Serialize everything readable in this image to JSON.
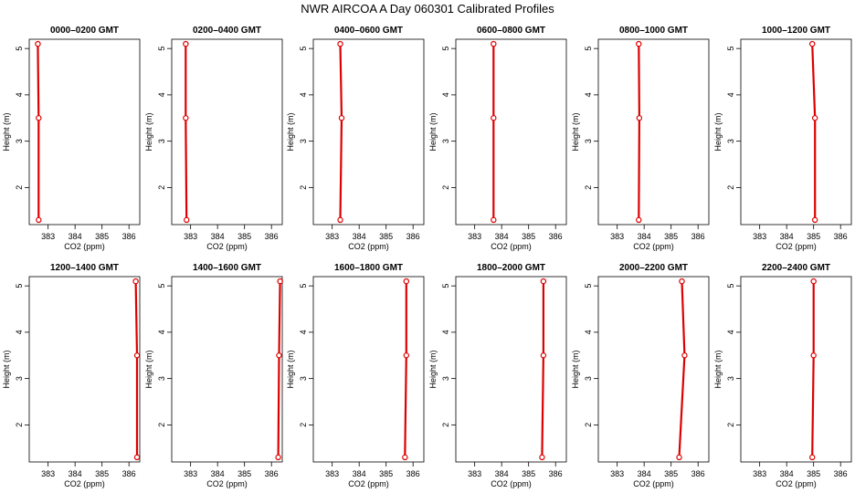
{
  "figure": {
    "title": "NWR AIRCOA A  Day 060301  Calibrated Profiles",
    "colors": {
      "line": "#dd0000",
      "axis": "#000000",
      "background": "#ffffff"
    }
  },
  "chart_data": [
    {
      "type": "line",
      "title": "0000–0200 GMT",
      "xlabel": "CO2 (ppm)",
      "ylabel": "Height (m)",
      "xlim": [
        382.3,
        386.4
      ],
      "ylim": [
        1.2,
        5.2
      ],
      "xticks": [
        383,
        384,
        385,
        386
      ],
      "yticks": [
        2,
        3,
        4,
        5
      ],
      "series": [
        {
          "x": [
            382.65,
            382.65,
            382.62
          ],
          "y": [
            1.3,
            3.5,
            5.1
          ]
        }
      ]
    },
    {
      "type": "line",
      "title": "0200–0400 GMT",
      "xlabel": "CO2 (ppm)",
      "ylabel": "Height (m)",
      "xlim": [
        382.3,
        386.4
      ],
      "ylim": [
        1.2,
        5.2
      ],
      "xticks": [
        383,
        384,
        385,
        386
      ],
      "yticks": [
        2,
        3,
        4,
        5
      ],
      "series": [
        {
          "x": [
            382.85,
            382.82,
            382.82
          ],
          "y": [
            1.3,
            3.5,
            5.1
          ]
        }
      ]
    },
    {
      "type": "line",
      "title": "0400–0600 GMT",
      "xlabel": "CO2 (ppm)",
      "ylabel": "Height (m)",
      "xlim": [
        382.3,
        386.4
      ],
      "ylim": [
        1.2,
        5.2
      ],
      "xticks": [
        383,
        384,
        385,
        386
      ],
      "yticks": [
        2,
        3,
        4,
        5
      ],
      "series": [
        {
          "x": [
            383.3,
            383.35,
            383.3
          ],
          "y": [
            1.3,
            3.5,
            5.1
          ]
        }
      ]
    },
    {
      "type": "line",
      "title": "0600–0800 GMT",
      "xlabel": "CO2 (ppm)",
      "ylabel": "Height (m)",
      "xlim": [
        382.3,
        386.4
      ],
      "ylim": [
        1.2,
        5.2
      ],
      "xticks": [
        383,
        384,
        385,
        386
      ],
      "yticks": [
        2,
        3,
        4,
        5
      ],
      "series": [
        {
          "x": [
            383.7,
            383.7,
            383.7
          ],
          "y": [
            1.3,
            3.5,
            5.1
          ]
        }
      ]
    },
    {
      "type": "line",
      "title": "0800–1000 GMT",
      "xlabel": "CO2 (ppm)",
      "ylabel": "Height (m)",
      "xlim": [
        382.3,
        386.4
      ],
      "ylim": [
        1.2,
        5.2
      ],
      "xticks": [
        383,
        384,
        385,
        386
      ],
      "yticks": [
        2,
        3,
        4,
        5
      ],
      "series": [
        {
          "x": [
            383.8,
            383.82,
            383.8
          ],
          "y": [
            1.3,
            3.5,
            5.1
          ]
        }
      ]
    },
    {
      "type": "line",
      "title": "1000–1200 GMT",
      "xlabel": "CO2 (ppm)",
      "ylabel": "Height (m)",
      "xlim": [
        382.3,
        386.4
      ],
      "ylim": [
        1.2,
        5.2
      ],
      "xticks": [
        383,
        384,
        385,
        386
      ],
      "yticks": [
        2,
        3,
        4,
        5
      ],
      "series": [
        {
          "x": [
            385.05,
            385.05,
            384.95
          ],
          "y": [
            1.3,
            3.5,
            5.1
          ]
        }
      ]
    },
    {
      "type": "line",
      "title": "1200–1400 GMT",
      "xlabel": "CO2 (ppm)",
      "ylabel": "Height (m)",
      "xlim": [
        382.3,
        386.4
      ],
      "ylim": [
        1.2,
        5.2
      ],
      "xticks": [
        383,
        384,
        385,
        386
      ],
      "yticks": [
        2,
        3,
        4,
        5
      ],
      "series": [
        {
          "x": [
            386.3,
            386.3,
            386.25
          ],
          "y": [
            1.3,
            3.5,
            5.1
          ]
        }
      ]
    },
    {
      "type": "line",
      "title": "1400–1600 GMT",
      "xlabel": "CO2 (ppm)",
      "ylabel": "Height (m)",
      "xlim": [
        382.3,
        386.4
      ],
      "ylim": [
        1.2,
        5.2
      ],
      "xticks": [
        383,
        384,
        385,
        386
      ],
      "yticks": [
        2,
        3,
        4,
        5
      ],
      "series": [
        {
          "x": [
            386.25,
            386.28,
            386.32
          ],
          "y": [
            1.3,
            3.5,
            5.1
          ]
        }
      ]
    },
    {
      "type": "line",
      "title": "1600–1800 GMT",
      "xlabel": "CO2 (ppm)",
      "ylabel": "Height (m)",
      "xlim": [
        382.3,
        386.4
      ],
      "ylim": [
        1.2,
        5.2
      ],
      "xticks": [
        383,
        384,
        385,
        386
      ],
      "yticks": [
        2,
        3,
        4,
        5
      ],
      "series": [
        {
          "x": [
            385.7,
            385.75,
            385.75
          ],
          "y": [
            1.3,
            3.5,
            5.1
          ]
        }
      ]
    },
    {
      "type": "line",
      "title": "1800–2000 GMT",
      "xlabel": "CO2 (ppm)",
      "ylabel": "Height (m)",
      "xlim": [
        382.3,
        386.4
      ],
      "ylim": [
        1.2,
        5.2
      ],
      "xticks": [
        383,
        384,
        385,
        386
      ],
      "yticks": [
        2,
        3,
        4,
        5
      ],
      "series": [
        {
          "x": [
            385.5,
            385.55,
            385.55
          ],
          "y": [
            1.3,
            3.5,
            5.1
          ]
        }
      ]
    },
    {
      "type": "line",
      "title": "2000–2200 GMT",
      "xlabel": "CO2 (ppm)",
      "ylabel": "Height (m)",
      "xlim": [
        382.3,
        386.4
      ],
      "ylim": [
        1.2,
        5.2
      ],
      "xticks": [
        383,
        384,
        385,
        386
      ],
      "yticks": [
        2,
        3,
        4,
        5
      ],
      "series": [
        {
          "x": [
            385.3,
            385.5,
            385.4
          ],
          "y": [
            1.3,
            3.5,
            5.1
          ]
        }
      ]
    },
    {
      "type": "line",
      "title": "2200–2400 GMT",
      "xlabel": "CO2 (ppm)",
      "ylabel": "Height (m)",
      "xlim": [
        382.3,
        386.4
      ],
      "ylim": [
        1.2,
        5.2
      ],
      "xticks": [
        383,
        384,
        385,
        386
      ],
      "yticks": [
        2,
        3,
        4,
        5
      ],
      "series": [
        {
          "x": [
            384.95,
            385.0,
            385.0
          ],
          "y": [
            1.3,
            3.5,
            5.1
          ]
        }
      ]
    }
  ]
}
